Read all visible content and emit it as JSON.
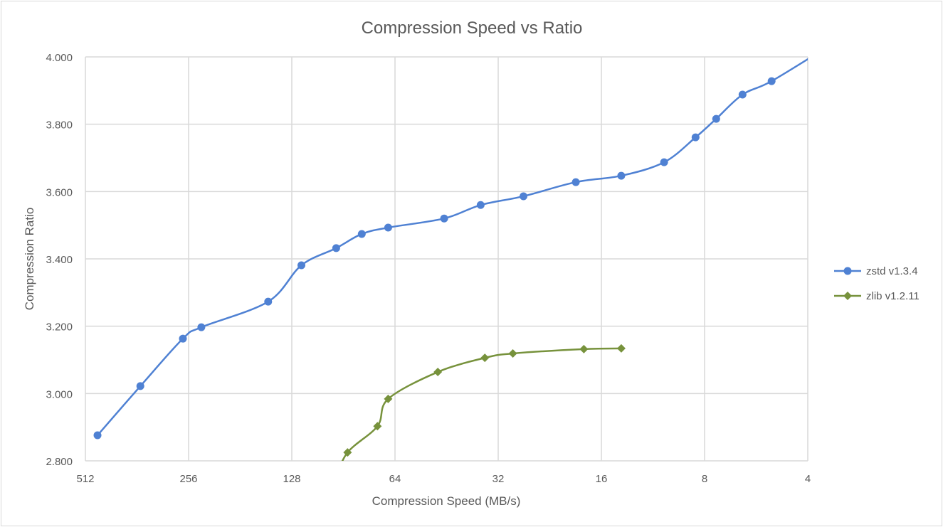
{
  "chart_data": {
    "type": "line",
    "title": "Compression Speed vs Ratio",
    "xlabel": "Compression Speed (MB/s)",
    "ylabel": "Compression Ratio",
    "x_scale": "log2, reversed",
    "xlim": [
      512,
      4
    ],
    "ylim": [
      2.8,
      4.0
    ],
    "x_ticks": [
      "512",
      "256",
      "128",
      "64",
      "32",
      "16",
      "8",
      "4"
    ],
    "y_ticks": [
      "2.800",
      "3.000",
      "3.200",
      "3.400",
      "3.600",
      "3.800",
      "4.000"
    ],
    "grid": true,
    "smooth": true,
    "legend_position": "right",
    "series": [
      {
        "name": "zstd v1.3.4",
        "color": "#4f81d3",
        "marker": "circle",
        "x": [
          472,
          354,
          266,
          235,
          150,
          120,
          95,
          80,
          67,
          46,
          36,
          27,
          19,
          14,
          10.5,
          8.5,
          7.4,
          6.2,
          5.1,
          3.4
        ],
        "y": [
          2.876,
          3.022,
          3.163,
          3.197,
          3.273,
          3.381,
          3.432,
          3.474,
          3.493,
          3.52,
          3.56,
          3.586,
          3.628,
          3.647,
          3.687,
          3.761,
          3.816,
          3.888,
          3.928,
          4.038
        ]
      },
      {
        "name": "zlib v1.2.11",
        "color": "#77923c",
        "marker": "diamond",
        "x": [
          96,
          88,
          72,
          67,
          48,
          35,
          29,
          18,
          14
        ],
        "y": [
          2.74,
          2.825,
          2.903,
          2.984,
          3.064,
          3.106,
          3.119,
          3.132,
          3.134
        ]
      }
    ]
  }
}
